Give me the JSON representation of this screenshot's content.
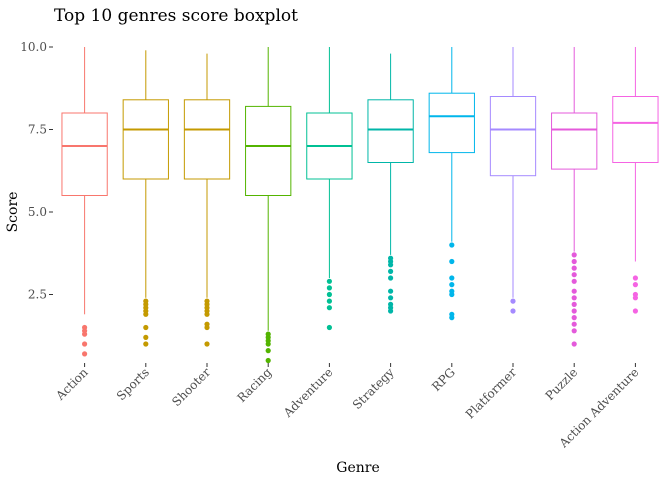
{
  "chart_data": {
    "type": "boxplot",
    "title": "Top 10 genres score boxplot",
    "xlabel": "Genre",
    "ylabel": "Score",
    "ylim": [
      0.4,
      10.0
    ],
    "yticks": [
      2.5,
      5.0,
      7.5,
      10.0
    ],
    "yticklabels": [
      "2.5",
      "5.0",
      "7.5",
      "10.0"
    ],
    "grid": false,
    "legend": "none",
    "categories": [
      "Action",
      "Sports",
      "Shooter",
      "Racing",
      "Adventure",
      "Strategy",
      "RPG",
      "Platformer",
      "Puzzle",
      "Action Adventure"
    ],
    "colors": [
      "#F8766D",
      "#D39200",
      "#93AA00",
      "#00BA38",
      "#00C19F",
      "#00B9E3",
      "#00ADFA",
      "#8F7FF4",
      "#DB72FB",
      "#FF61C3"
    ],
    "series": [
      {
        "category": "Action",
        "color": "#F8766D",
        "min": 1.9,
        "q1": 5.5,
        "median": 7.0,
        "q3": 8.0,
        "max": 10.0,
        "outliers": [
          1.5,
          1.4,
          1.3,
          1.0,
          0.7
        ]
      },
      {
        "category": "Sports",
        "color": "#C49A00",
        "min": 2.4,
        "q1": 6.0,
        "median": 7.5,
        "q3": 8.4,
        "max": 9.9,
        "outliers": [
          2.3,
          2.2,
          2.1,
          2.0,
          1.9,
          1.5,
          1.2,
          1.0
        ]
      },
      {
        "category": "Shooter",
        "color": "#C49A00",
        "min": 2.4,
        "q1": 6.0,
        "median": 7.5,
        "q3": 8.4,
        "max": 9.8,
        "outliers": [
          2.3,
          2.2,
          2.1,
          2.0,
          1.9,
          1.6,
          1.5,
          1.0
        ]
      },
      {
        "category": "Racing",
        "color": "#53B400",
        "min": 1.4,
        "q1": 5.5,
        "median": 7.0,
        "q3": 8.2,
        "max": 10.0,
        "outliers": [
          1.3,
          1.2,
          1.1,
          1.0,
          0.8,
          0.5
        ]
      },
      {
        "category": "Adventure",
        "color": "#00C094",
        "min": 3.0,
        "q1": 6.0,
        "median": 7.0,
        "q3": 8.0,
        "max": 10.0,
        "outliers": [
          2.9,
          2.7,
          2.5,
          2.3,
          2.1,
          1.5
        ]
      },
      {
        "category": "Strategy",
        "color": "#00B6A8",
        "min": 3.7,
        "q1": 6.5,
        "median": 7.5,
        "q3": 8.4,
        "max": 9.8,
        "outliers": [
          3.6,
          3.5,
          3.4,
          3.2,
          3.0,
          2.6,
          2.4,
          2.2,
          2.1,
          2.0
        ]
      },
      {
        "category": "RPG",
        "color": "#00B6EB",
        "min": 4.1,
        "q1": 6.8,
        "median": 7.9,
        "q3": 8.6,
        "max": 10.0,
        "outliers": [
          4.0,
          3.5,
          3.0,
          2.8,
          2.6,
          2.5,
          1.9,
          1.8
        ]
      },
      {
        "category": "Platformer",
        "color": "#A58AFF",
        "min": 2.4,
        "q1": 6.1,
        "median": 7.5,
        "q3": 8.5,
        "max": 10.0,
        "outliers": [
          2.3,
          2.0
        ]
      },
      {
        "category": "Puzzle",
        "color": "#E45ADB",
        "min": 3.8,
        "q1": 6.3,
        "median": 7.5,
        "q3": 8.0,
        "max": 10.0,
        "outliers": [
          3.7,
          3.5,
          3.3,
          3.1,
          2.9,
          2.6,
          2.4,
          2.2,
          2.0,
          1.8,
          1.6,
          1.4,
          1.0
        ]
      },
      {
        "category": "Action Adventure",
        "color": "#F564E3",
        "min": 3.5,
        "q1": 6.5,
        "median": 7.7,
        "q3": 8.5,
        "max": 10.0,
        "outliers": [
          3.0,
          2.8,
          2.5,
          2.4,
          2.0
        ]
      }
    ]
  }
}
